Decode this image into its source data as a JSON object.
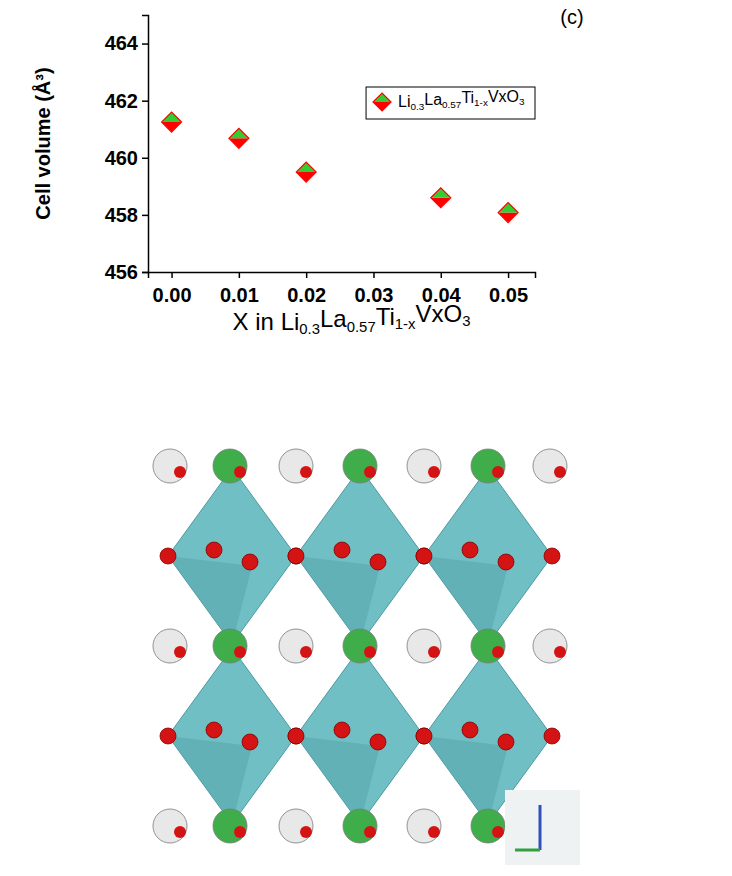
{
  "chart_data": {
    "type": "scatter",
    "annotations": [
      "(c)"
    ],
    "x_label": "X in Li0.3La0.57Ti1-xVxO3",
    "y_label": "Cell volume (Å³)",
    "x": [
      0,
      0.01,
      0.02,
      0.04,
      0.05
    ],
    "series": [
      {
        "name": "Li0.3La0.57Ti1-xVxO3",
        "color": "#ff0000",
        "marker": "diamond",
        "values": [
          461.25,
          460.68,
          459.5,
          458.6,
          458.08
        ]
      }
    ],
    "xlim": [
      -0.0035,
      0.054
    ],
    "xticks": [
      {
        "value": 0,
        "label": "0.00"
      },
      {
        "value": 0.01,
        "label": "0.01"
      },
      {
        "value": 0.02,
        "label": "0.02"
      },
      {
        "value": 0.03,
        "label": "0.03"
      },
      {
        "value": 0.04,
        "label": "0.04"
      },
      {
        "value": 0.05,
        "label": "0.05"
      }
    ],
    "ylim": [
      456,
      465
    ],
    "yticks": [
      456,
      458,
      460,
      462,
      464
    ],
    "grid": false,
    "legend": "upper right"
  }
}
